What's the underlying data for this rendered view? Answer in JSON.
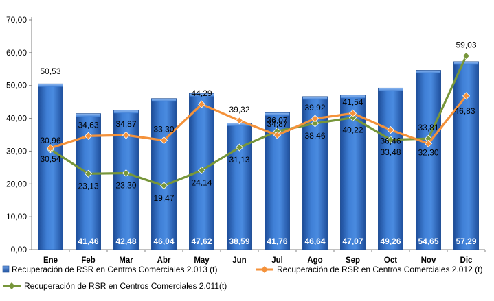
{
  "chart_data": {
    "type": "bar",
    "categories": [
      "Ene",
      "Feb",
      "Mar",
      "Abr",
      "May",
      "Jun",
      "Jul",
      "Ago",
      "Sep",
      "Oct",
      "Nov",
      "Dic"
    ],
    "ylim": [
      0,
      70
    ],
    "yticks": [
      "0,00",
      "10,00",
      "20,00",
      "30,00",
      "40,00",
      "50,00",
      "60,00",
      "70,00"
    ],
    "grid": false,
    "legend_position": "bottom",
    "series": [
      {
        "name": "Recuperación de RSR en Centros Comerciales 2.013 (t)",
        "kind": "bar",
        "color": "#2e6bc4",
        "values": [
          50.53,
          41.46,
          42.48,
          46.04,
          47.62,
          38.59,
          41.76,
          46.64,
          47.07,
          49.26,
          54.65,
          57.29
        ],
        "labels": [
          "50,53",
          "41,46",
          "42,48",
          "46,04",
          "47,62",
          "38,59",
          "41,76",
          "46,64",
          "47,07",
          "49,26",
          "54,65",
          "57,29"
        ]
      },
      {
        "name": "Recuperación de RSR en Centros Comerciales 2.012 (t)",
        "kind": "line",
        "color": "#f4923b",
        "values": [
          30.96,
          34.63,
          34.87,
          33.3,
          44.29,
          39.32,
          34.87,
          39.92,
          41.54,
          36.46,
          32.3,
          46.83
        ],
        "labels": [
          "30,96",
          "34,63",
          "34,87",
          "33,30",
          "44,29",
          "39,32",
          "34,87",
          "39,92",
          "41,54",
          "36,46",
          "32,30",
          "46,83"
        ]
      },
      {
        "name": "Recuperación de RSR en Centros Comerciales 2.011(t)",
        "kind": "line",
        "color": "#77963a",
        "values": [
          30.54,
          23.13,
          23.3,
          19.47,
          24.14,
          31.13,
          36.07,
          38.46,
          40.22,
          33.48,
          33.81,
          59.03
        ],
        "labels": [
          "30,54",
          "23,13",
          "23,30",
          "19,47",
          "24,14",
          "31,13",
          "36,07",
          "38,46",
          "40,22",
          "33,48",
          "33,81",
          "59,03"
        ]
      }
    ]
  }
}
